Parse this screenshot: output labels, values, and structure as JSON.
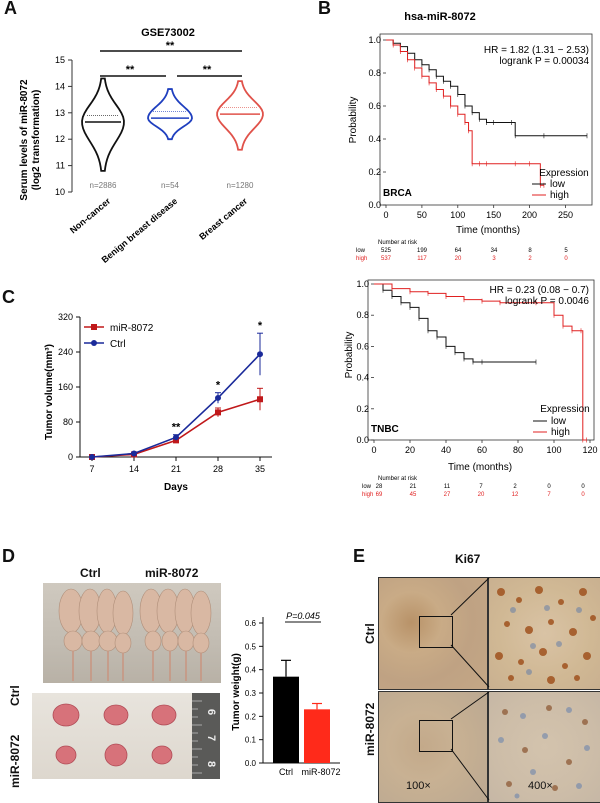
{
  "panels": {
    "a": "A",
    "b": "B",
    "c": "C",
    "d": "D",
    "e": "E"
  },
  "panel_a": {
    "title": "GSE73002",
    "ylabel1": "Serum levels of miR-8072",
    "ylabel2": "(log2 transformation)",
    "sig": [
      "**",
      "**",
      "**"
    ],
    "colors": {
      "non_cancer": "#111111",
      "benign": "#1f3fbf",
      "cancer": "#e0524a"
    }
  },
  "panel_b": {
    "title": "hsa-miR-8072",
    "brca": {
      "hr": "HR = 1.82 (1.31 − 2.53)",
      "logrank": "logrank P = 0.00034",
      "label": "BRCA",
      "legend_title": "Expression",
      "legend": [
        "low",
        "high"
      ],
      "xlabel": "Time (months)",
      "ylabel": "Probability",
      "risk_title": "Number at risk",
      "risk_low_label": "low",
      "risk_high_label": "high",
      "risk_low": [
        "525",
        "199",
        "64",
        "34",
        "8",
        "5"
      ],
      "risk_high": [
        "537",
        "117",
        "20",
        "3",
        "2",
        "0"
      ]
    },
    "tnbc": {
      "hr": "HR = 0.23 (0.08 − 0.7)",
      "logrank": "logrank P = 0.0046",
      "label": "TNBC",
      "legend_title": "Expression",
      "legend": [
        "low",
        "high"
      ],
      "xlabel": "Time (months)",
      "ylabel": "Probability",
      "risk_title": "Number at risk",
      "risk_low_label": "low",
      "risk_high_label": "high",
      "risk_low": [
        "28",
        "21",
        "11",
        "7",
        "2",
        "0",
        "0"
      ],
      "risk_high": [
        "69",
        "45",
        "27",
        "20",
        "12",
        "7",
        "0"
      ]
    }
  },
  "panel_c": {
    "xlabel": "Days",
    "ylabel": "Tumor volume(mm³)",
    "sig": [
      "**",
      "*",
      "*"
    ]
  },
  "panel_d": {
    "col_ctrl": "Ctrl",
    "col_mir": "miR-8072",
    "row_ctrl": "Ctrl",
    "row_mir": "miR-8072",
    "ruler": [
      "6",
      "7",
      "8"
    ],
    "pvalue": "P=0.045",
    "colors": {
      "ctrl": "#000000",
      "mir": "#ff2a1a"
    }
  },
  "panel_e": {
    "title": "Ki67",
    "row_ctrl": "Ctrl",
    "row_mir": "miR-8072",
    "mag_low": "100×",
    "mag_high": "400×"
  },
  "chart_data": [
    {
      "type": "violin",
      "panel": "A",
      "title": "GSE73002",
      "ylabel": "Serum levels of miR-8072 (log2 transformation)",
      "categories": [
        "Non-cancer",
        "Benign breast disease",
        "Breast cancer"
      ],
      "n_labels": [
        "n=2886",
        "n=54",
        "n=1280"
      ],
      "median": [
        12.65,
        12.8,
        12.95
      ],
      "ylim": [
        10,
        15
      ],
      "yticks": [
        10,
        11,
        12,
        13,
        14,
        15
      ]
    },
    {
      "type": "line",
      "panel": "B-BRCA",
      "xlabel": "Time (months)",
      "ylabel": "Probability",
      "xlim": [
        0,
        280
      ],
      "ylim": [
        0,
        1
      ],
      "xticks": [
        0,
        50,
        100,
        150,
        200,
        250
      ],
      "yticks": [
        0.0,
        0.2,
        0.4,
        0.6,
        0.8,
        1.0
      ],
      "series": [
        {
          "name": "low",
          "x": [
            0,
            10,
            20,
            30,
            40,
            50,
            60,
            70,
            80,
            90,
            100,
            110,
            120,
            130,
            140,
            150,
            175,
            180,
            220,
            280
          ],
          "y": [
            1.0,
            0.98,
            0.96,
            0.92,
            0.88,
            0.85,
            0.82,
            0.78,
            0.75,
            0.72,
            0.67,
            0.6,
            0.56,
            0.52,
            0.5,
            0.5,
            0.5,
            0.42,
            0.42,
            0.42
          ]
        },
        {
          "name": "high",
          "x": [
            0,
            10,
            20,
            30,
            40,
            50,
            60,
            70,
            80,
            90,
            100,
            110,
            115,
            120,
            130,
            140,
            180,
            200,
            215,
            220
          ],
          "y": [
            1.0,
            0.97,
            0.93,
            0.88,
            0.83,
            0.78,
            0.74,
            0.7,
            0.66,
            0.6,
            0.55,
            0.5,
            0.45,
            0.25,
            0.25,
            0.25,
            0.25,
            0.25,
            0.12,
            0.12
          ]
        }
      ]
    },
    {
      "type": "line",
      "panel": "B-TNBC",
      "xlabel": "Time (months)",
      "ylabel": "Probability",
      "xlim": [
        0,
        120
      ],
      "ylim": [
        0,
        1
      ],
      "xticks": [
        0,
        20,
        40,
        60,
        80,
        100,
        120
      ],
      "yticks": [
        0.0,
        0.2,
        0.4,
        0.6,
        0.8,
        1.0
      ],
      "series": [
        {
          "name": "low",
          "x": [
            0,
            5,
            10,
            15,
            20,
            25,
            30,
            35,
            40,
            45,
            50,
            55,
            60,
            90
          ],
          "y": [
            1.0,
            0.96,
            0.92,
            0.88,
            0.85,
            0.78,
            0.7,
            0.66,
            0.6,
            0.56,
            0.52,
            0.5,
            0.5,
            0.5
          ]
        },
        {
          "name": "high",
          "x": [
            0,
            10,
            20,
            30,
            40,
            50,
            60,
            70,
            90,
            100,
            105,
            110,
            115,
            116,
            118
          ],
          "y": [
            1.0,
            0.97,
            0.95,
            0.94,
            0.92,
            0.9,
            0.89,
            0.88,
            0.88,
            0.8,
            0.73,
            0.7,
            0.7,
            0.0,
            0.0
          ]
        }
      ]
    },
    {
      "type": "line",
      "panel": "C",
      "xlabel": "Days",
      "ylabel": "Tumor volume(mm³)",
      "categories": [
        "7",
        "14",
        "21",
        "28",
        "35"
      ],
      "ylim": [
        0,
        320
      ],
      "yticks": [
        0,
        80,
        160,
        240,
        320
      ],
      "series": [
        {
          "name": "miR-8072",
          "values": [
            0,
            6,
            38,
            102,
            132
          ],
          "error": [
            0,
            2,
            5,
            10,
            25
          ]
        },
        {
          "name": "Ctrl",
          "values": [
            0,
            8,
            45,
            135,
            235
          ],
          "error": [
            0,
            2,
            6,
            12,
            48
          ]
        }
      ]
    },
    {
      "type": "bar",
      "panel": "D",
      "ylabel": "Tumor weight(g)",
      "categories": [
        "Ctrl",
        "miR-8072"
      ],
      "values": [
        0.37,
        0.23
      ],
      "error": [
        0.07,
        0.025
      ],
      "ylim": [
        0,
        0.6
      ],
      "yticks": [
        0.0,
        0.1,
        0.2,
        0.3,
        0.4,
        0.5,
        0.6
      ]
    }
  ]
}
